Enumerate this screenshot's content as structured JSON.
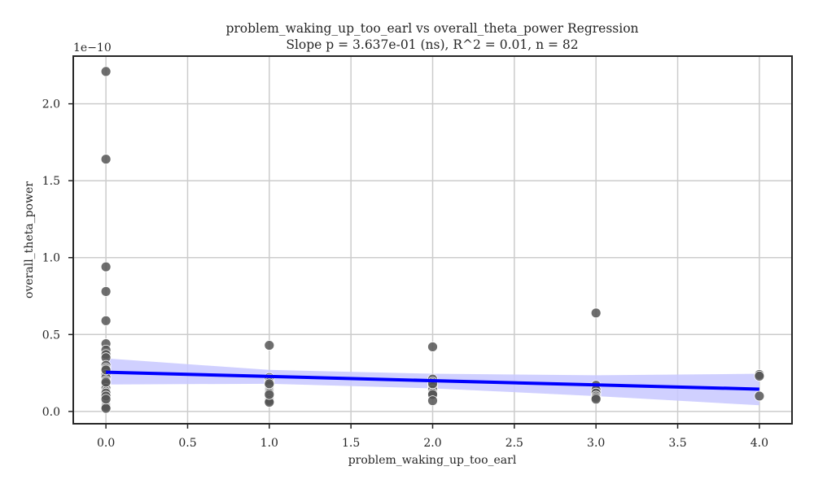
{
  "chart_data": {
    "type": "scatter",
    "title": "problem_waking_up_too_earl vs overall_theta_power Regression",
    "subtitle": "Slope p = 3.637e-01 (ns), R^2 = 0.01, n = 82",
    "xlabel": "problem_waking_up_too_earl",
    "ylabel": "overall_theta_power",
    "y_offset_label": "1e−10",
    "xlim": [
      -0.2,
      4.2
    ],
    "ylim": [
      -0.08,
      2.31
    ],
    "x_ticks": [
      0.0,
      0.5,
      1.0,
      1.5,
      2.0,
      2.5,
      3.0,
      3.5,
      4.0
    ],
    "x_tick_labels": [
      "0.0",
      "0.5",
      "1.0",
      "1.5",
      "2.0",
      "2.5",
      "3.0",
      "3.5",
      "4.0"
    ],
    "y_ticks": [
      0.0,
      0.5,
      1.0,
      1.5,
      2.0
    ],
    "y_tick_labels": [
      "0.0",
      "0.5",
      "1.0",
      "1.5",
      "2.0"
    ],
    "grid": true,
    "colors": {
      "points": "#555555",
      "point_edge": "#ffffff",
      "regression_line": "#0000ff",
      "confidence_band": "#c8c8ff",
      "grid": "#cccccc",
      "axes": "#262626"
    },
    "scatter": [
      {
        "x": 0,
        "y": 2.21
      },
      {
        "x": 0,
        "y": 1.64
      },
      {
        "x": 0,
        "y": 0.94
      },
      {
        "x": 0,
        "y": 0.78
      },
      {
        "x": 0,
        "y": 0.59
      },
      {
        "x": 0,
        "y": 0.44
      },
      {
        "x": 0,
        "y": 0.4
      },
      {
        "x": 0,
        "y": 0.37
      },
      {
        "x": 0,
        "y": 0.35
      },
      {
        "x": 0,
        "y": 0.3
      },
      {
        "x": 0,
        "y": 0.28
      },
      {
        "x": 0,
        "y": 0.24
      },
      {
        "x": 0,
        "y": 0.22
      },
      {
        "x": 0,
        "y": 0.2
      },
      {
        "x": 0,
        "y": 0.18
      },
      {
        "x": 0,
        "y": 0.15
      },
      {
        "x": 0,
        "y": 0.13
      },
      {
        "x": 0,
        "y": 0.11
      },
      {
        "x": 0,
        "y": 0.09
      },
      {
        "x": 0,
        "y": 0.07
      },
      {
        "x": 0,
        "y": 0.06
      },
      {
        "x": 0,
        "y": 0.05
      },
      {
        "x": 0,
        "y": 0.04
      },
      {
        "x": 0,
        "y": 0.03
      },
      {
        "x": 0,
        "y": 0.02
      },
      {
        "x": 0,
        "y": 0.12
      },
      {
        "x": 0,
        "y": 0.27
      },
      {
        "x": 0,
        "y": 0.19
      },
      {
        "x": 0,
        "y": 0.1
      },
      {
        "x": 0,
        "y": 0.08
      },
      {
        "x": 1,
        "y": 0.43
      },
      {
        "x": 1,
        "y": 0.22
      },
      {
        "x": 1,
        "y": 0.21
      },
      {
        "x": 1,
        "y": 0.19
      },
      {
        "x": 1,
        "y": 0.17
      },
      {
        "x": 1,
        "y": 0.14
      },
      {
        "x": 1,
        "y": 0.13
      },
      {
        "x": 1,
        "y": 0.12
      },
      {
        "x": 1,
        "y": 0.1
      },
      {
        "x": 1,
        "y": 0.09
      },
      {
        "x": 1,
        "y": 0.08
      },
      {
        "x": 1,
        "y": 0.07
      },
      {
        "x": 1,
        "y": 0.06
      },
      {
        "x": 1,
        "y": 0.11
      },
      {
        "x": 1,
        "y": 0.18
      },
      {
        "x": 2,
        "y": 0.42
      },
      {
        "x": 2,
        "y": 0.21
      },
      {
        "x": 2,
        "y": 0.19
      },
      {
        "x": 2,
        "y": 0.17
      },
      {
        "x": 2,
        "y": 0.16
      },
      {
        "x": 2,
        "y": 0.14
      },
      {
        "x": 2,
        "y": 0.12
      },
      {
        "x": 2,
        "y": 0.11
      },
      {
        "x": 2,
        "y": 0.07
      },
      {
        "x": 2,
        "y": 0.18
      },
      {
        "x": 3,
        "y": 0.64
      },
      {
        "x": 3,
        "y": 0.17
      },
      {
        "x": 3,
        "y": 0.14
      },
      {
        "x": 3,
        "y": 0.12
      },
      {
        "x": 3,
        "y": 0.1
      },
      {
        "x": 3,
        "y": 0.09
      },
      {
        "x": 3,
        "y": 0.08
      },
      {
        "x": 4,
        "y": 0.24
      },
      {
        "x": 4,
        "y": 0.23
      },
      {
        "x": 4,
        "y": 0.1
      }
    ],
    "regression_line": {
      "x": [
        0,
        4
      ],
      "y": [
        0.255,
        0.145
      ]
    },
    "confidence_band": {
      "x": [
        0,
        1,
        2,
        3,
        4
      ],
      "lower": [
        0.175,
        0.18,
        0.15,
        0.1,
        0.04
      ],
      "upper": [
        0.345,
        0.27,
        0.245,
        0.235,
        0.245
      ]
    }
  }
}
